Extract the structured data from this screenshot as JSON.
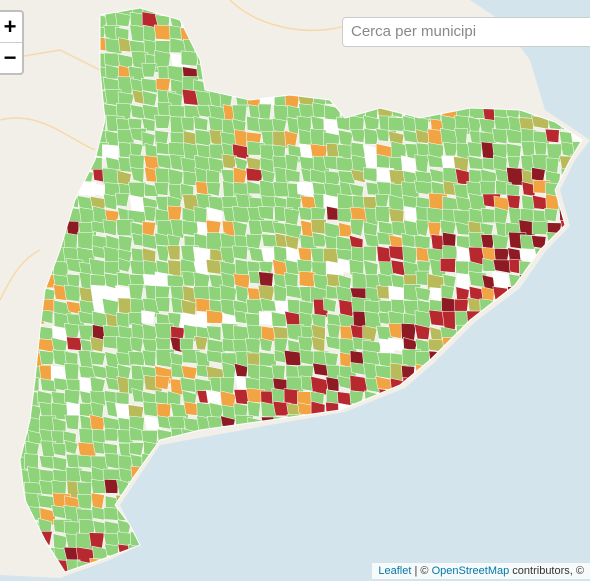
{
  "zoom_controls": {
    "zoom_in": "+",
    "zoom_out": "−"
  },
  "search": {
    "placeholder": "Cerca per municipi"
  },
  "attribution": {
    "leaflet": "Leaflet",
    "separator": "| ©",
    "osm": "OpenStreetMap",
    "rest": "contributors, ©"
  }
}
